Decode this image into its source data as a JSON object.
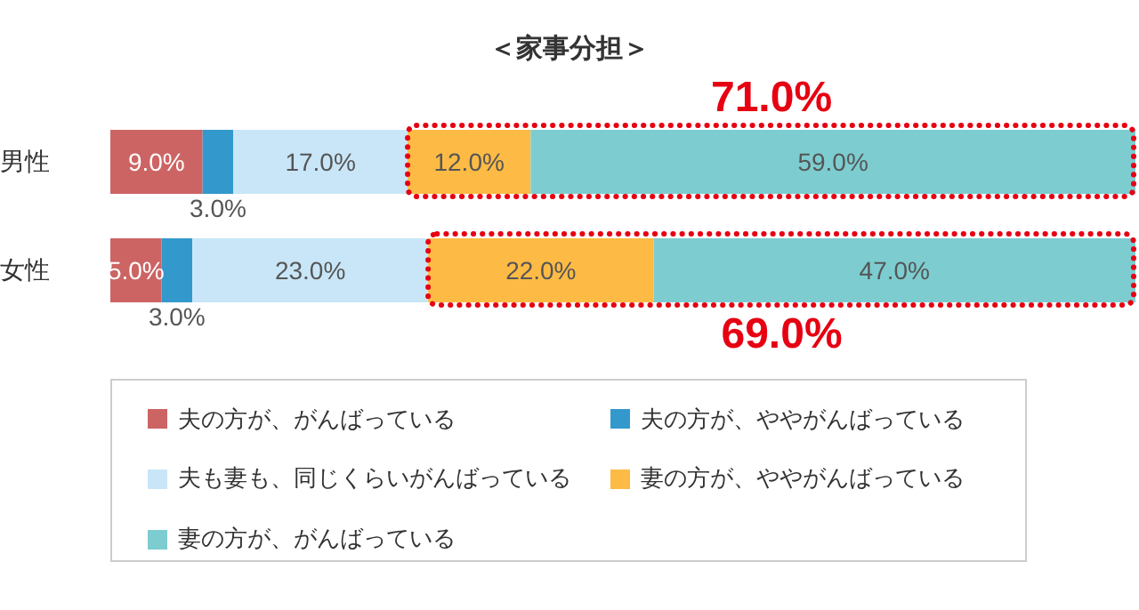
{
  "chart_data": {
    "type": "bar",
    "orientation": "horizontal",
    "stacked": true,
    "title": "＜家事分担＞",
    "categories": [
      "男性",
      "女性"
    ],
    "xlim": [
      0,
      100
    ],
    "tick_labels": "y",
    "legend": "bottom",
    "series": [
      {
        "name": "夫の方が、がんばっている",
        "color": "#cd6464",
        "values": [
          9,
          5
        ],
        "value_labels": [
          "9.0%",
          "5.0%"
        ]
      },
      {
        "name": "夫の方が、ややがんばっている",
        "color": "#3399cc",
        "values": [
          3,
          3
        ],
        "value_labels": [
          "3.0%",
          "3.0%"
        ]
      },
      {
        "name": "夫も妻も、同じくらいがんばっている",
        "color": "#c9e6f8",
        "values": [
          17,
          23
        ],
        "value_labels": [
          "17.0%",
          "23.0%"
        ]
      },
      {
        "name": "妻の方が、ややがんばっている",
        "color": "#fdbb45",
        "values": [
          12,
          22
        ],
        "value_labels": [
          "12.0%",
          "22.0%"
        ]
      },
      {
        "name": "妻の方が、がんばっている",
        "color": "#7dcdd0",
        "values": [
          59,
          47
        ],
        "value_labels": [
          "59.0%",
          "47.0%"
        ]
      }
    ],
    "annotations": [
      "71.0%",
      "69.0%"
    ]
  }
}
